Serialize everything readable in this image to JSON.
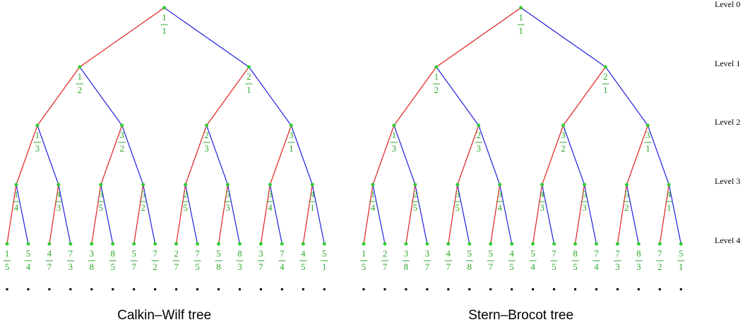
{
  "level_labels": [
    "Level 0",
    "Level 1",
    "Level 2",
    "Level 3",
    "Level 4"
  ],
  "trees": [
    {
      "title": "Calkin–Wilf tree",
      "levels": [
        [
          {
            "n": 1,
            "d": 1
          }
        ],
        [
          {
            "n": 1,
            "d": 2
          },
          {
            "n": 2,
            "d": 1
          }
        ],
        [
          {
            "n": 1,
            "d": 3
          },
          {
            "n": 3,
            "d": 2
          },
          {
            "n": 2,
            "d": 3
          },
          {
            "n": 3,
            "d": 1
          }
        ],
        [
          {
            "n": 1,
            "d": 4
          },
          {
            "n": 4,
            "d": 3
          },
          {
            "n": 3,
            "d": 5
          },
          {
            "n": 5,
            "d": 2
          },
          {
            "n": 2,
            "d": 5
          },
          {
            "n": 5,
            "d": 3
          },
          {
            "n": 3,
            "d": 4
          },
          {
            "n": 4,
            "d": 1
          }
        ],
        [
          {
            "n": 1,
            "d": 5
          },
          {
            "n": 5,
            "d": 4
          },
          {
            "n": 4,
            "d": 7
          },
          {
            "n": 7,
            "d": 3
          },
          {
            "n": 3,
            "d": 8
          },
          {
            "n": 8,
            "d": 5
          },
          {
            "n": 5,
            "d": 7
          },
          {
            "n": 7,
            "d": 2
          },
          {
            "n": 2,
            "d": 7
          },
          {
            "n": 7,
            "d": 5
          },
          {
            "n": 5,
            "d": 8
          },
          {
            "n": 8,
            "d": 3
          },
          {
            "n": 3,
            "d": 7
          },
          {
            "n": 7,
            "d": 4
          },
          {
            "n": 4,
            "d": 5
          },
          {
            "n": 5,
            "d": 1
          }
        ]
      ]
    },
    {
      "title": "Stern–Brocot tree",
      "levels": [
        [
          {
            "n": 1,
            "d": 1
          }
        ],
        [
          {
            "n": 1,
            "d": 2
          },
          {
            "n": 2,
            "d": 1
          }
        ],
        [
          {
            "n": 1,
            "d": 3
          },
          {
            "n": 2,
            "d": 3
          },
          {
            "n": 3,
            "d": 2
          },
          {
            "n": 3,
            "d": 1
          }
        ],
        [
          {
            "n": 1,
            "d": 4
          },
          {
            "n": 2,
            "d": 5
          },
          {
            "n": 3,
            "d": 5
          },
          {
            "n": 3,
            "d": 4
          },
          {
            "n": 4,
            "d": 3
          },
          {
            "n": 5,
            "d": 3
          },
          {
            "n": 5,
            "d": 2
          },
          {
            "n": 4,
            "d": 1
          }
        ],
        [
          {
            "n": 1,
            "d": 5
          },
          {
            "n": 2,
            "d": 7
          },
          {
            "n": 3,
            "d": 8
          },
          {
            "n": 3,
            "d": 7
          },
          {
            "n": 4,
            "d": 7
          },
          {
            "n": 5,
            "d": 8
          },
          {
            "n": 5,
            "d": 7
          },
          {
            "n": 4,
            "d": 5
          },
          {
            "n": 5,
            "d": 4
          },
          {
            "n": 7,
            "d": 5
          },
          {
            "n": 8,
            "d": 5
          },
          {
            "n": 7,
            "d": 4
          },
          {
            "n": 7,
            "d": 3
          },
          {
            "n": 8,
            "d": 3
          },
          {
            "n": 7,
            "d": 2
          },
          {
            "n": 5,
            "d": 1
          }
        ]
      ]
    }
  ]
}
